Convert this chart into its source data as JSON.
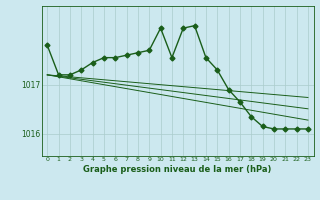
{
  "xlabel": "Graphe pression niveau de la mer (hPa)",
  "bg_color": "#cce8ef",
  "plot_bg_color": "#cce8ef",
  "grid_color": "#aacccc",
  "line_color": "#1a5e1a",
  "x_ticks": [
    0,
    1,
    2,
    3,
    4,
    5,
    6,
    7,
    8,
    9,
    10,
    11,
    12,
    13,
    14,
    15,
    16,
    17,
    18,
    19,
    20,
    21,
    22,
    23
  ],
  "yticks": [
    1016,
    1017
  ],
  "ylim": [
    1015.55,
    1018.6
  ],
  "xlim": [
    -0.5,
    23.5
  ],
  "series_main": [
    1017.8,
    1017.2,
    1017.2,
    1017.3,
    1017.45,
    1017.55,
    1017.55,
    1017.6,
    1017.65,
    1017.7,
    1018.15,
    1017.55,
    1018.15,
    1018.2,
    1017.55,
    1017.3,
    1016.9,
    1016.65,
    1016.35,
    1016.15,
    1016.1,
    1016.1,
    1016.1,
    1016.1
  ],
  "series_line1": [
    1017.2,
    1017.18,
    1017.16,
    1017.14,
    1017.12,
    1017.1,
    1017.08,
    1017.06,
    1017.04,
    1017.02,
    1017.0,
    1016.98,
    1016.96,
    1016.94,
    1016.92,
    1016.9,
    1016.88,
    1016.86,
    1016.84,
    1016.82,
    1016.8,
    1016.78,
    1016.76,
    1016.74
  ],
  "series_line2": [
    1017.2,
    1017.17,
    1017.14,
    1017.11,
    1017.08,
    1017.05,
    1017.02,
    1016.99,
    1016.96,
    1016.93,
    1016.9,
    1016.87,
    1016.84,
    1016.81,
    1016.78,
    1016.75,
    1016.72,
    1016.69,
    1016.66,
    1016.63,
    1016.6,
    1016.57,
    1016.54,
    1016.51
  ],
  "series_line3": [
    1017.2,
    1017.16,
    1017.12,
    1017.08,
    1017.04,
    1017.0,
    1016.96,
    1016.92,
    1016.88,
    1016.84,
    1016.8,
    1016.76,
    1016.72,
    1016.68,
    1016.64,
    1016.6,
    1016.56,
    1016.52,
    1016.48,
    1016.44,
    1016.4,
    1016.36,
    1016.32,
    1016.28
  ],
  "markersize": 2.5,
  "linewidth_main": 1.0,
  "linewidth_thin": 0.7
}
